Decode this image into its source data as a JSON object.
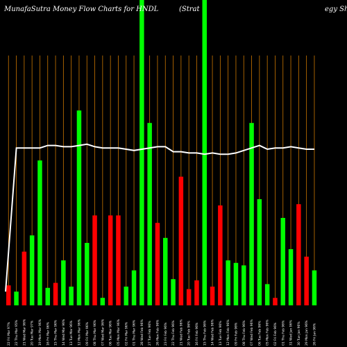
{
  "chart_data": {
    "type": "bar",
    "title": "MunafaSutra  Money Flow  Charts for HNDL",
    "title_right": "(Strat",
    "title_far_right": "egy Sh",
    "background_color": "#000000",
    "up_color": "#00ff00",
    "down_color": "#ff0000",
    "grid_color": "#cc7700",
    "line_color": "#ffffff",
    "grid": true,
    "legend": "none",
    "ylim": [
      0,
      100
    ],
    "bars": [
      {
        "label": "22 Fri Mar 97%",
        "value": 8,
        "dir": "down"
      },
      {
        "label": "22 Thu Mar 95%",
        "value": 5.5,
        "dir": "up"
      },
      {
        "label": "21 Wed Mar 96%",
        "value": 21.5,
        "dir": "down"
      },
      {
        "label": "20 Tue Mar 97%",
        "value": 28,
        "dir": "up"
      },
      {
        "label": "19 Mon Mar 96%",
        "value": 58,
        "dir": "up"
      },
      {
        "label": "16 Fri Mar 96%",
        "value": 7,
        "dir": "up"
      },
      {
        "label": "15 Thu Mar 96%",
        "value": 9,
        "dir": "down"
      },
      {
        "label": "14 Wed Mar 96%",
        "value": 18,
        "dir": "up"
      },
      {
        "label": "13 Tue Mar 96%",
        "value": 7.5,
        "dir": "up"
      },
      {
        "label": "12 Mon Mar 96%",
        "value": 78,
        "dir": "up"
      },
      {
        "label": "09 Fri Mar 96%",
        "value": 25,
        "dir": "up"
      },
      {
        "label": "08 Thu Mar 96%",
        "value": 36,
        "dir": "down"
      },
      {
        "label": "07 Wed Mar 96%",
        "value": 3,
        "dir": "up"
      },
      {
        "label": "06 Tue Mar 96%",
        "value": 36,
        "dir": "down"
      },
      {
        "label": "05 Mon Mar 96%",
        "value": 36,
        "dir": "down"
      },
      {
        "label": "02 Fri Mar 96%",
        "value": 7.5,
        "dir": "up"
      },
      {
        "label": "01 Thu Mar 96%",
        "value": 14,
        "dir": "up"
      },
      {
        "label": "28 Wed Feb 96%",
        "value": 100,
        "dir": "up"
      },
      {
        "label": "27 Tue Feb 96%",
        "value": 73,
        "dir": "up"
      },
      {
        "label": "26 Mon Feb 96%",
        "value": 33,
        "dir": "down"
      },
      {
        "label": "23 Fri Feb 96%",
        "value": 27,
        "dir": "up"
      },
      {
        "label": "22 Thu Feb 96%",
        "value": 10.5,
        "dir": "up"
      },
      {
        "label": "21 Wed Feb 96%",
        "value": 51.5,
        "dir": "down"
      },
      {
        "label": "20 Tue Feb 96%",
        "value": 6.5,
        "dir": "down"
      },
      {
        "label": "16 Fri Feb 96%",
        "value": 10,
        "dir": "down"
      },
      {
        "label": "15 Thu Feb 96%",
        "value": 100,
        "dir": "up"
      },
      {
        "label": "14 Wed Feb 96%",
        "value": 7.5,
        "dir": "down"
      },
      {
        "label": "13 Tue Feb 96%",
        "value": 40,
        "dir": "down"
      },
      {
        "label": "12 Mon Feb 96%",
        "value": 18,
        "dir": "up"
      },
      {
        "label": "09 Fri Feb 96%",
        "value": 17,
        "dir": "up"
      },
      {
        "label": "08 Thu Feb 96%",
        "value": 16,
        "dir": "up"
      },
      {
        "label": "07 Wed Feb 96%",
        "value": 73,
        "dir": "up"
      },
      {
        "label": "06 Tue Feb 96%",
        "value": 42.5,
        "dir": "up"
      },
      {
        "label": "05 Mon Feb 96%",
        "value": 8.5,
        "dir": "up"
      },
      {
        "label": "02 Fri Feb 96%",
        "value": 3,
        "dir": "down"
      },
      {
        "label": "01 Thu Feb 96%",
        "value": 35,
        "dir": "up"
      },
      {
        "label": "31 Wed Jan 96%",
        "value": 22.5,
        "dir": "up"
      },
      {
        "label": "30 Tue Jan 96%",
        "value": 40.5,
        "dir": "down"
      },
      {
        "label": "29 Mon Jan 96%",
        "value": 19.5,
        "dir": "down"
      },
      {
        "label": "26 Fri Jan 96%",
        "value": 14,
        "dir": "up"
      }
    ],
    "line_values": [
      5.5,
      63,
      63,
      63,
      63,
      64,
      64,
      63.5,
      63.5,
      64,
      64.5,
      63.5,
      63,
      63,
      63,
      62.5,
      62,
      62.5,
      63,
      63.5,
      63.5,
      61.5,
      61.5,
      61,
      61,
      60.5,
      61,
      60.5,
      60.5,
      61,
      62,
      63,
      64,
      62.5,
      63,
      63,
      63.5,
      63,
      62.5,
      62.5
    ]
  }
}
